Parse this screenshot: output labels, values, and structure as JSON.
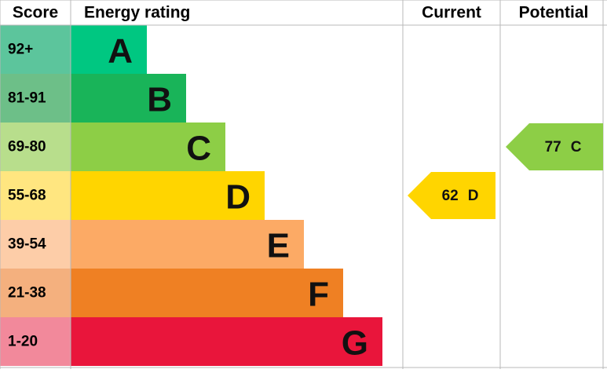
{
  "headers": [
    "Score",
    "Energy rating",
    "Current",
    "Potential"
  ],
  "bands": [
    {
      "score": "92+",
      "letter": "A",
      "color": "#00c781",
      "score_color": "#5cc59c"
    },
    {
      "score": "81-91",
      "letter": "B",
      "color": "#19b459",
      "score_color": "#6dbf88"
    },
    {
      "score": "69-80",
      "letter": "C",
      "color": "#8dce46",
      "score_color": "#b8de8c"
    },
    {
      "score": "55-68",
      "letter": "D",
      "color": "#ffd500",
      "score_color": "#ffe680"
    },
    {
      "score": "39-54",
      "letter": "E",
      "color": "#fcaa65",
      "score_color": "#fdcda8"
    },
    {
      "score": "21-38",
      "letter": "F",
      "color": "#ef8023",
      "score_color": "#f4b07e"
    },
    {
      "score": "1-20",
      "letter": "G",
      "color": "#e9153b",
      "score_color": "#f2899b"
    }
  ],
  "current": {
    "value": 62,
    "letter": "D"
  },
  "potential": {
    "value": 77,
    "letter": "C"
  }
}
